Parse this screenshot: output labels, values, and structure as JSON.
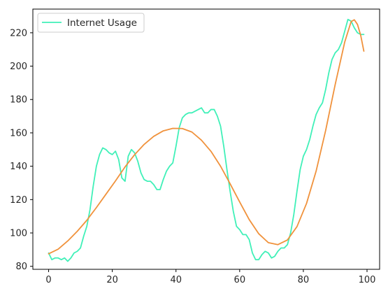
{
  "chart_data": {
    "type": "line",
    "title": "",
    "xlabel": "",
    "ylabel": "",
    "xlim": [
      -4.95,
      103.95
    ],
    "ylim": [
      78.2,
      234.2
    ],
    "xticks": [
      0,
      20,
      40,
      60,
      80,
      100
    ],
    "yticks": [
      80,
      100,
      120,
      140,
      160,
      180,
      200,
      220
    ],
    "grid": false,
    "legend": {
      "placement": "top-left"
    },
    "series": [
      {
        "name": "Internet Usage",
        "color": "#40f0b8",
        "x": [
          0,
          1,
          2,
          3,
          4,
          5,
          6,
          7,
          8,
          9,
          10,
          11,
          12,
          13,
          14,
          15,
          16,
          17,
          18,
          19,
          20,
          21,
          22,
          23,
          24,
          25,
          26,
          27,
          28,
          29,
          30,
          31,
          32,
          33,
          34,
          35,
          36,
          37,
          38,
          39,
          40,
          41,
          42,
          43,
          44,
          45,
          46,
          47,
          48,
          49,
          50,
          51,
          52,
          53,
          54,
          55,
          56,
          57,
          58,
          59,
          60,
          61,
          62,
          63,
          64,
          65,
          66,
          67,
          68,
          69,
          70,
          71,
          72,
          73,
          74,
          75,
          76,
          77,
          78,
          79,
          80,
          81,
          82,
          83,
          84,
          85,
          86,
          87,
          88,
          89,
          90,
          91,
          92,
          93,
          94,
          95,
          96,
          97,
          98,
          99
        ],
        "values": [
          88,
          84,
          85,
          85,
          84,
          85,
          83,
          85,
          88,
          89,
          91,
          98,
          104,
          114,
          128,
          140,
          147,
          151,
          150,
          148,
          147,
          149,
          144,
          133,
          131,
          146,
          150,
          148,
          143,
          136,
          132,
          131,
          131,
          129,
          126,
          126,
          132,
          137,
          140,
          142,
          152,
          163,
          169,
          171,
          172,
          172,
          173,
          174,
          175,
          172,
          172,
          174,
          174,
          170,
          164,
          152,
          138,
          125,
          113,
          104,
          102,
          99,
          99,
          96,
          88,
          84,
          84,
          87,
          89,
          88,
          85,
          86,
          89,
          91,
          91,
          93,
          100,
          111,
          125,
          138,
          146,
          150,
          156,
          164,
          171,
          175,
          178,
          186,
          196,
          204,
          208,
          210,
          214,
          221,
          228,
          227,
          223,
          220,
          219,
          219
        ]
      },
      {
        "name": "",
        "color": "#f0923c",
        "x": [
          0,
          3,
          6,
          9,
          12,
          15,
          18,
          21,
          24,
          27,
          30,
          33,
          36,
          39,
          42,
          45,
          48,
          51,
          54,
          57,
          60,
          63,
          66,
          69,
          72,
          75,
          78,
          81,
          84,
          87,
          90,
          93,
          95,
          96,
          97,
          98,
          99
        ],
        "values": [
          87.5,
          90.3,
          95.2,
          101.0,
          107.6,
          115.2,
          123.2,
          131.2,
          139.6,
          146.9,
          153.1,
          157.9,
          161.2,
          162.7,
          162.6,
          160.5,
          155.6,
          148.9,
          140.0,
          129.5,
          118.6,
          108.0,
          99.5,
          94.2,
          93.0,
          95.8,
          103.8,
          117.7,
          137.0,
          161.4,
          189.0,
          214.5,
          226.7,
          227.8,
          225.0,
          218.6,
          209.0
        ]
      }
    ]
  }
}
